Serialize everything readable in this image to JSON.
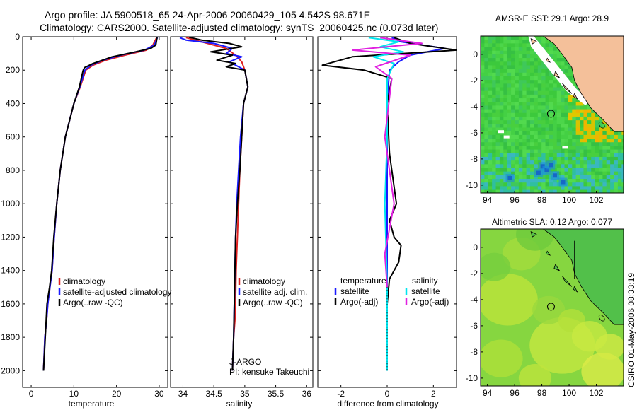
{
  "header": {
    "line1": "Argo profile: JA 5900518_65 24-Apr-2006 20060429_105 4.542S 98.671E",
    "line2": "Climatology: CARS2000. Satellite-adjusted climatology: synTS_20060425.nc (0.073d later)"
  },
  "stamp": "CSIRO 01-May-2006 08:33:19",
  "colors": {
    "climatology": "#e02020",
    "satellite": "#1a1aff",
    "argo": "#000000",
    "satellite_diff": "#00e5ee",
    "argo_adj": "#e020e0",
    "land": "#f4c09a"
  },
  "chart_data": [
    {
      "type": "line",
      "id": "temperature",
      "xlabel": "temperature",
      "ylabel": "",
      "xlim": [
        -2,
        32
      ],
      "ylim": [
        2100,
        0
      ],
      "xticks": [
        0,
        10,
        20,
        30
      ],
      "yticks": [
        0,
        200,
        400,
        600,
        800,
        1000,
        1200,
        1400,
        1600,
        1800,
        2000
      ],
      "legend_entries": [
        "climatology",
        "satellite-adjusted climatology",
        "Argo(..raw -QC)"
      ],
      "series": [
        {
          "name": "climatology",
          "color": "#e02020",
          "x": [
            29.4,
            29.1,
            28.5,
            27.0,
            22.0,
            17.5,
            14.5,
            12.8,
            11.5,
            10.0,
            8.0,
            6.8,
            6.0,
            5.4,
            4.9,
            4.4,
            3.9,
            3.6,
            3.2,
            2.9
          ],
          "y": [
            5,
            20,
            50,
            80,
            110,
            140,
            170,
            200,
            300,
            400,
            600,
            800,
            1000,
            1200,
            1400,
            1500,
            1600,
            1700,
            1800,
            2000
          ]
        },
        {
          "name": "satellite-adjusted climatology",
          "color": "#1a1aff",
          "x": [
            29.6,
            29.3,
            28.9,
            26.5,
            21.0,
            16.8,
            14.0,
            12.6,
            11.4,
            10.0,
            8.0,
            6.8,
            6.0,
            5.4,
            4.9,
            4.4,
            3.9,
            3.6,
            3.2,
            2.9
          ],
          "y": [
            5,
            20,
            50,
            80,
            110,
            140,
            170,
            200,
            300,
            400,
            600,
            800,
            1000,
            1200,
            1400,
            1500,
            1600,
            1700,
            1800,
            2000
          ]
        },
        {
          "name": "Argo(..raw -QC)",
          "color": "#000000",
          "x": [
            29.5,
            29.4,
            29.2,
            28.0,
            24.5,
            19.0,
            14.5,
            12.5,
            12.2,
            12.0,
            11.3,
            10.0,
            8.0,
            6.8,
            6.0,
            5.3,
            4.8,
            4.3,
            3.7,
            3.3,
            2.9
          ],
          "y": [
            3,
            20,
            50,
            70,
            90,
            120,
            160,
            185,
            200,
            220,
            300,
            400,
            600,
            800,
            1000,
            1200,
            1400,
            1500,
            1600,
            1800,
            2000
          ]
        }
      ]
    },
    {
      "type": "line",
      "id": "salinity",
      "xlabel": "salinity",
      "xlim": [
        33.8,
        36.1
      ],
      "ylim": [
        2100,
        0
      ],
      "xticks": [
        34,
        34.5,
        35,
        35.5,
        36
      ],
      "xticklabels": [
        "34",
        "34.5",
        "35",
        "35.5",
        "36"
      ],
      "yticks": [
        0,
        200,
        400,
        600,
        800,
        1000,
        1200,
        1400,
        1600,
        1800,
        2000
      ],
      "legend_entries": [
        "climatology",
        "satellite adj. clim.",
        "Argo(..raw -QC)"
      ],
      "annotations": [
        "J-ARGO",
        "PI: kensuke Takeuchi"
      ],
      "series": [
        {
          "name": "climatology",
          "color": "#e02020",
          "x": [
            34.05,
            34.3,
            34.7,
            34.85,
            34.95,
            35.0,
            35.05,
            34.98,
            34.95,
            34.92,
            34.9,
            34.88,
            34.86,
            34.85,
            34.84,
            34.82,
            34.8
          ],
          "y": [
            5,
            30,
            70,
            110,
            150,
            200,
            300,
            400,
            600,
            800,
            1000,
            1200,
            1400,
            1600,
            1700,
            1800,
            2000
          ]
        },
        {
          "name": "satellite adj. clim.",
          "color": "#1a1aff",
          "x": [
            33.95,
            34.05,
            34.5,
            34.8,
            34.7,
            34.95,
            34.75,
            35.0,
            35.05,
            34.98,
            34.93,
            34.9,
            34.87,
            34.85,
            34.84,
            34.83,
            34.82,
            34.8
          ],
          "y": [
            5,
            20,
            40,
            70,
            100,
            120,
            150,
            200,
            300,
            400,
            600,
            800,
            1000,
            1200,
            1400,
            1600,
            1800,
            2000
          ]
        },
        {
          "name": "Argo(..raw -QC)",
          "color": "#000000",
          "x": [
            34.1,
            34.3,
            34.75,
            34.95,
            34.45,
            34.8,
            34.55,
            34.85,
            34.7,
            35.0,
            35.05,
            34.98,
            34.95,
            34.92,
            34.88,
            34.85,
            34.84,
            34.82,
            34.8
          ],
          "y": [
            3,
            20,
            40,
            60,
            90,
            110,
            140,
            160,
            180,
            200,
            300,
            400,
            600,
            800,
            1000,
            1200,
            1400,
            1800,
            2000
          ]
        }
      ]
    },
    {
      "type": "line",
      "id": "difference",
      "xlabel": "difference from climatology",
      "xlim": [
        -3,
        3
      ],
      "ylim": [
        2100,
        0
      ],
      "xticks": [
        -2,
        0,
        2
      ],
      "yticks": [
        0,
        200,
        400,
        600,
        800,
        1000,
        1200,
        1400,
        1600,
        1800,
        2000
      ],
      "legend_headers": [
        "temperature",
        "salinity"
      ],
      "legend_entries": [
        "satellite",
        "Argo(-adj)",
        "satellite",
        "Argo(-adj)"
      ],
      "series": [
        {
          "name": "satellite",
          "group": "temperature",
          "color": "#1a1aff",
          "x": [
            0.2,
            0.6,
            2.5,
            1.0,
            0.5,
            0.1,
            0.0,
            0.0,
            0.0,
            0.0,
            0.0
          ],
          "y": [
            5,
            30,
            70,
            110,
            150,
            200,
            400,
            800,
            1200,
            1600,
            2000
          ]
        },
        {
          "name": "Argo(-adj)",
          "group": "temperature",
          "color": "#000000",
          "x": [
            0.3,
            1.0,
            3.0,
            -1.5,
            -2.8,
            -1.0,
            0.2,
            0.0,
            0.1,
            0.4,
            0.1,
            0.3,
            0.6,
            0.5,
            0.1,
            0.0,
            0.0
          ],
          "y": [
            5,
            40,
            80,
            120,
            170,
            200,
            250,
            400,
            700,
            1000,
            1100,
            1200,
            1250,
            1350,
            1450,
            1600,
            2000
          ]
        },
        {
          "name": "satellite",
          "group": "salinity",
          "color": "#00e5ee",
          "x": [
            -0.8,
            0.5,
            -0.3,
            0.7,
            -0.6,
            0.3,
            0.0,
            0.0,
            -0.1,
            0.0,
            0.0
          ],
          "y": [
            5,
            30,
            60,
            90,
            120,
            160,
            250,
            600,
            1000,
            1500,
            2000
          ]
        },
        {
          "name": "Argo(-adj)",
          "group": "salinity",
          "color": "#e020e0",
          "x": [
            -0.3,
            1.5,
            -1.5,
            1.0,
            -0.5,
            0.2,
            -0.1,
            0.3,
            -0.1,
            0.0
          ],
          "y": [
            5,
            40,
            80,
            110,
            180,
            250,
            600,
            1000,
            1300,
            1500
          ]
        }
      ]
    },
    {
      "type": "heatmap",
      "id": "sst_map",
      "title": "AMSR-E SST: 29.1 Argo: 28.9",
      "xlim": [
        93.5,
        104
      ],
      "ylim": [
        -10.6,
        1.4
      ],
      "xticks": [
        94,
        96,
        98,
        100,
        102
      ],
      "yticks": [
        0,
        -2,
        -4,
        -6,
        -8,
        -10
      ],
      "argo_position": [
        98.67,
        -4.54
      ]
    },
    {
      "type": "heatmap",
      "id": "sla_map",
      "title": "Altimetric SLA: 0.12 Argo: 0.077",
      "xlim": [
        93.5,
        104
      ],
      "ylim": [
        -10.6,
        1.4
      ],
      "xticks": [
        94,
        96,
        98,
        100,
        102
      ],
      "yticks": [
        0,
        -2,
        -4,
        -6,
        -8,
        -10
      ],
      "argo_position": [
        98.67,
        -4.54
      ]
    }
  ]
}
